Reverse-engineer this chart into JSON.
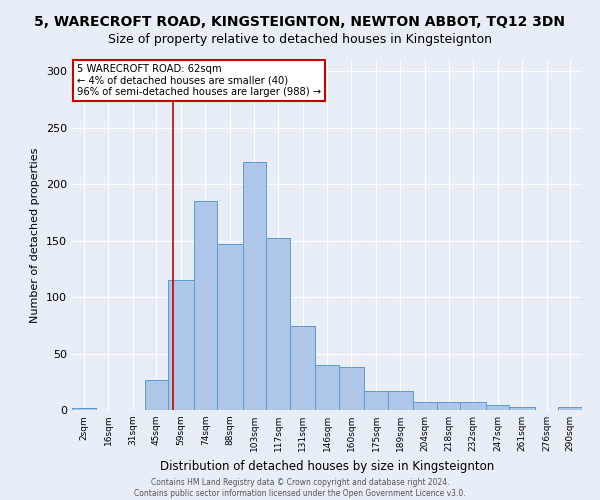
{
  "title1": "5, WARECROFT ROAD, KINGSTEIGNTON, NEWTON ABBOT, TQ12 3DN",
  "title2": "Size of property relative to detached houses in Kingsteignton",
  "xlabel": "Distribution of detached houses by size in Kingsteignton",
  "ylabel": "Number of detached properties",
  "footer1": "Contains HM Land Registry data © Crown copyright and database right 2024.",
  "footer2": "Contains public sector information licensed under the Open Government Licence v3.0.",
  "annotation_title": "5 WARECROFT ROAD: 62sqm",
  "annotation_line2": "← 4% of detached houses are smaller (40)",
  "annotation_line3": "96% of semi-detached houses are larger (988) →",
  "property_size": 62,
  "bar_categories": [
    "2sqm",
    "16sqm",
    "31sqm",
    "45sqm",
    "59sqm",
    "74sqm",
    "88sqm",
    "103sqm",
    "117sqm",
    "131sqm",
    "146sqm",
    "160sqm",
    "175sqm",
    "189sqm",
    "204sqm",
    "218sqm",
    "232sqm",
    "247sqm",
    "261sqm",
    "276sqm",
    "290sqm"
  ],
  "bar_values": [
    2,
    0,
    0,
    27,
    115,
    185,
    147,
    220,
    152,
    74,
    40,
    38,
    17,
    17,
    7,
    7,
    7,
    4,
    3,
    0,
    3
  ],
  "bin_edges": [
    2,
    16,
    31,
    45,
    59,
    74,
    88,
    103,
    117,
    131,
    146,
    160,
    175,
    189,
    204,
    218,
    232,
    247,
    261,
    276,
    290,
    304
  ],
  "bar_color": "#AEC6E8",
  "bar_edge_color": "#5B9BD5",
  "vline_color": "#CC0000",
  "vline_x": 62,
  "ylim": [
    0,
    310
  ],
  "yticks": [
    0,
    50,
    100,
    150,
    200,
    250,
    300
  ],
  "bg_color": "#E8EEF7",
  "grid_color": "#FFFFFF",
  "title1_fontsize": 10,
  "title2_fontsize": 9,
  "annotation_box_color": "#FFFFFF",
  "annotation_box_edge": "#CC0000"
}
